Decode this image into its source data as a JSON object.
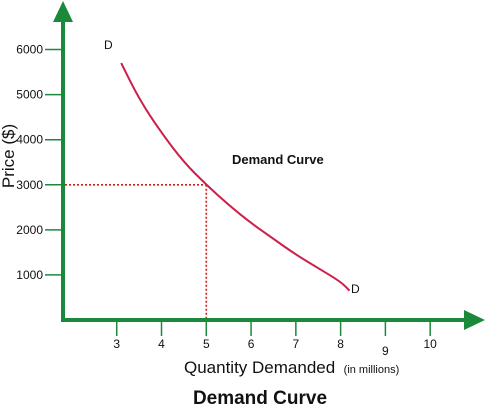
{
  "chart_data": {
    "type": "line",
    "title": "Demand Curve",
    "annotation": "Demand Curve",
    "xlabel": "Quantity Demanded",
    "xlabel_note": "(in millions)",
    "ylabel": "Price ($)",
    "x_ticks": [
      "3",
      "4",
      "5",
      "6",
      "7",
      "8",
      "9",
      "10"
    ],
    "y_ticks": [
      "1000",
      "2000",
      "3000",
      "4000",
      "5000",
      "6000"
    ],
    "x_tick_values": [
      3,
      4,
      5,
      6,
      7,
      8,
      9,
      10
    ],
    "y_tick_values": [
      1000,
      2000,
      3000,
      4000,
      5000,
      6000
    ],
    "xlim": [
      1.8,
      10.8
    ],
    "ylim": [
      0,
      6700
    ],
    "grid": false,
    "series": [
      {
        "name": "D",
        "label_start": "D",
        "label_end": "D",
        "x": [
          3.1,
          3.5,
          4.0,
          4.5,
          5.0,
          5.5,
          6.0,
          6.5,
          7.0,
          7.5,
          8.0,
          8.2
        ],
        "y": [
          5700,
          4900,
          4150,
          3500,
          3000,
          2550,
          2150,
          1800,
          1450,
          1150,
          850,
          650
        ]
      }
    ],
    "reference_point": {
      "x": 5,
      "y": 3000
    },
    "colors": {
      "axis": "#1a8a3a",
      "curve": "#cc1f4a",
      "reference_lines": "#d11a1a"
    }
  }
}
